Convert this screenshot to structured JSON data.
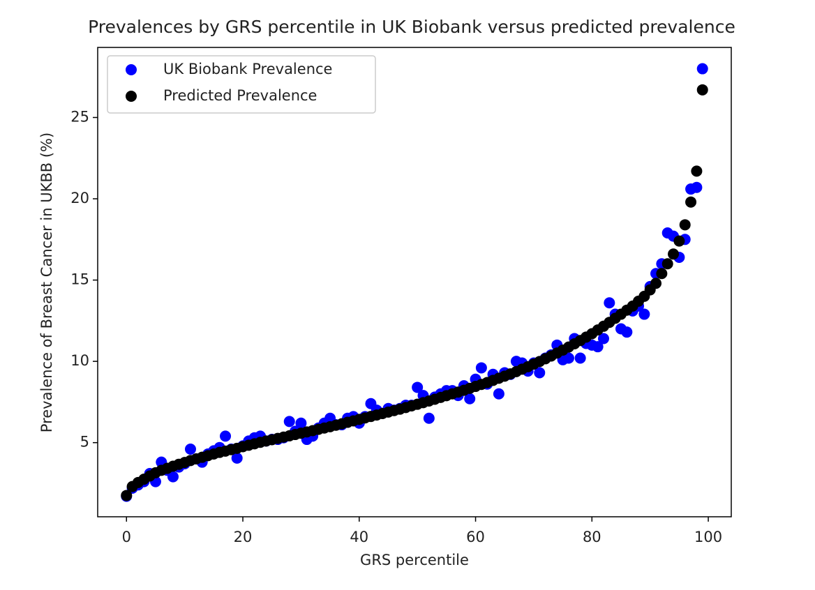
{
  "chart_data": {
    "type": "scatter",
    "title": "Prevalences by GRS percentile in UK Biobank versus predicted prevalence",
    "xlabel": "GRS percentile",
    "ylabel": "Prevalence of Breast Cancer in UKBB (%)",
    "x": [
      0,
      1,
      2,
      3,
      4,
      5,
      6,
      7,
      8,
      9,
      10,
      11,
      12,
      13,
      14,
      15,
      16,
      17,
      18,
      19,
      20,
      21,
      22,
      23,
      24,
      25,
      26,
      27,
      28,
      29,
      30,
      31,
      32,
      33,
      34,
      35,
      36,
      37,
      38,
      39,
      40,
      41,
      42,
      43,
      44,
      45,
      46,
      47,
      48,
      49,
      50,
      51,
      52,
      53,
      54,
      55,
      56,
      57,
      58,
      59,
      60,
      61,
      62,
      63,
      64,
      65,
      66,
      67,
      68,
      69,
      70,
      71,
      72,
      73,
      74,
      75,
      76,
      77,
      78,
      79,
      80,
      81,
      82,
      83,
      84,
      85,
      86,
      87,
      88,
      89,
      90,
      91,
      92,
      93,
      94,
      95,
      96,
      97,
      98,
      99
    ],
    "series": [
      {
        "name": "UK Biobank Prevalence",
        "color": "#0000ff",
        "values": [
          1.7,
          2.2,
          2.4,
          2.6,
          3.1,
          2.6,
          3.8,
          3.3,
          2.9,
          3.5,
          3.7,
          4.6,
          4.0,
          3.8,
          4.3,
          4.5,
          4.7,
          5.4,
          4.6,
          4.05,
          4.8,
          5.1,
          5.3,
          5.4,
          5.1,
          5.2,
          5.2,
          5.3,
          6.3,
          5.7,
          6.2,
          5.2,
          5.4,
          5.9,
          6.2,
          6.5,
          6.1,
          6.1,
          6.5,
          6.6,
          6.2,
          6.6,
          7.4,
          7.0,
          6.8,
          7.1,
          7.0,
          7.1,
          7.3,
          7.3,
          8.4,
          7.9,
          6.5,
          7.8,
          8.0,
          8.2,
          8.2,
          7.9,
          8.5,
          7.7,
          8.9,
          9.6,
          8.6,
          9.2,
          8.0,
          9.3,
          9.2,
          10.0,
          9.9,
          9.4,
          9.9,
          9.3,
          10.2,
          10.4,
          11.0,
          10.1,
          10.2,
          11.4,
          10.2,
          11.1,
          11.0,
          10.9,
          11.4,
          13.6,
          12.9,
          12.0,
          11.8,
          13.1,
          13.4,
          12.9,
          14.6,
          15.4,
          16.0,
          17.9,
          17.7,
          16.4,
          17.5,
          20.6,
          20.7,
          28.0
        ]
      },
      {
        "name": "Predicted Prevalence",
        "color": "#000000",
        "values": [
          1.75,
          2.3,
          2.55,
          2.75,
          2.95,
          3.15,
          3.3,
          3.42,
          3.55,
          3.67,
          3.78,
          3.9,
          4.0,
          4.1,
          4.2,
          4.3,
          4.4,
          4.48,
          4.57,
          4.65,
          4.75,
          4.84,
          4.93,
          5.02,
          5.1,
          5.18,
          5.26,
          5.34,
          5.42,
          5.5,
          5.58,
          5.66,
          5.74,
          5.82,
          5.9,
          5.98,
          6.07,
          6.16,
          6.25,
          6.34,
          6.43,
          6.52,
          6.61,
          6.7,
          6.79,
          6.88,
          6.97,
          7.06,
          7.16,
          7.26,
          7.36,
          7.46,
          7.56,
          7.67,
          7.78,
          7.89,
          8.0,
          8.11,
          8.22,
          8.34,
          8.46,
          8.58,
          8.7,
          8.83,
          8.96,
          9.09,
          9.23,
          9.37,
          9.52,
          9.67,
          9.83,
          9.99,
          10.16,
          10.33,
          10.51,
          10.69,
          10.88,
          11.08,
          11.28,
          11.49,
          11.7,
          11.93,
          12.16,
          12.4,
          12.65,
          12.9,
          13.15,
          13.4,
          13.7,
          14.0,
          14.4,
          14.8,
          15.4,
          16.0,
          16.6,
          17.4,
          18.4,
          19.8,
          21.7,
          26.7
        ]
      }
    ],
    "xlim": [
      -4.95,
      103.95
    ],
    "ylim": [
      0.44,
      29.31
    ],
    "xticks": [
      0,
      20,
      40,
      60,
      80,
      100
    ],
    "yticks": [
      5,
      10,
      15,
      20,
      25
    ],
    "legend": "upper left",
    "grid": false
  }
}
